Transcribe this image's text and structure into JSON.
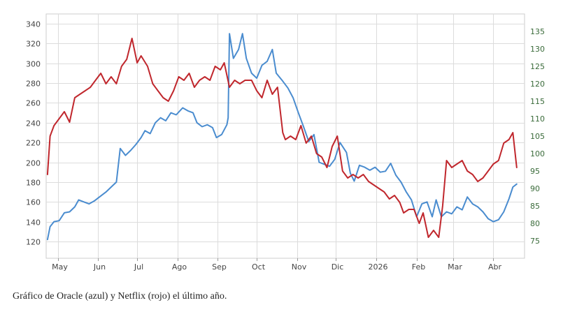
{
  "caption": "Gráfico de Oracle (azul) y Netflix (rojo) el último año.",
  "chart_data": {
    "type": "line",
    "grid": true,
    "legend": "none",
    "x_ticks": [
      "May",
      "Jun",
      "Jul",
      "Ago",
      "Sep",
      "Oct",
      "Nov",
      "Dic",
      "2026",
      "Feb",
      "Mar",
      "Abr"
    ],
    "x_range": [
      "2025-04-22",
      "2026-04-25"
    ],
    "y_left": {
      "min": 120,
      "max": 340,
      "ticks": [
        120,
        140,
        160,
        180,
        200,
        220,
        240,
        260,
        280,
        300,
        320,
        340
      ]
    },
    "y_right": {
      "min": 75,
      "max": 135,
      "ticks": [
        75,
        80,
        85,
        90,
        95,
        100,
        105,
        110,
        115,
        120,
        125,
        130,
        135
      ]
    },
    "series": [
      {
        "axis": "left",
        "color": "#4a8ccf",
        "points": [
          [
            "2025-04-23",
            122
          ],
          [
            "2025-04-25",
            135
          ],
          [
            "2025-04-28",
            140
          ],
          [
            "2025-05-02",
            141
          ],
          [
            "2025-05-06",
            149
          ],
          [
            "2025-05-10",
            150
          ],
          [
            "2025-05-14",
            155
          ],
          [
            "2025-05-17",
            162
          ],
          [
            "2025-05-21",
            160
          ],
          [
            "2025-05-25",
            158
          ],
          [
            "2025-05-29",
            161
          ],
          [
            "2025-06-02",
            165
          ],
          [
            "2025-06-07",
            170
          ],
          [
            "2025-06-11",
            175
          ],
          [
            "2025-06-15",
            180
          ],
          [
            "2025-06-18",
            214
          ],
          [
            "2025-06-22",
            207
          ],
          [
            "2025-06-26",
            212
          ],
          [
            "2025-06-30",
            218
          ],
          [
            "2025-07-04",
            225
          ],
          [
            "2025-07-07",
            232
          ],
          [
            "2025-07-11",
            229
          ],
          [
            "2025-07-15",
            240
          ],
          [
            "2025-07-19",
            245
          ],
          [
            "2025-07-23",
            242
          ],
          [
            "2025-07-27",
            250
          ],
          [
            "2025-07-31",
            248
          ],
          [
            "2025-08-05",
            255
          ],
          [
            "2025-08-09",
            252
          ],
          [
            "2025-08-13",
            250
          ],
          [
            "2025-08-16",
            240
          ],
          [
            "2025-08-20",
            236
          ],
          [
            "2025-08-24",
            238
          ],
          [
            "2025-08-28",
            235
          ],
          [
            "2025-08-31",
            225
          ],
          [
            "2025-09-04",
            228
          ],
          [
            "2025-09-08",
            238
          ],
          [
            "2025-09-09",
            245
          ],
          [
            "2025-09-10",
            330
          ],
          [
            "2025-09-13",
            305
          ],
          [
            "2025-09-17",
            314
          ],
          [
            "2025-09-20",
            330
          ],
          [
            "2025-09-23",
            305
          ],
          [
            "2025-09-27",
            290
          ],
          [
            "2025-10-01",
            285
          ],
          [
            "2025-10-05",
            298
          ],
          [
            "2025-10-09",
            302
          ],
          [
            "2025-10-13",
            314
          ],
          [
            "2025-10-16",
            290
          ],
          [
            "2025-10-21",
            282
          ],
          [
            "2025-10-25",
            275
          ],
          [
            "2025-10-29",
            265
          ],
          [
            "2025-11-02",
            250
          ],
          [
            "2025-11-06",
            236
          ],
          [
            "2025-11-10",
            221
          ],
          [
            "2025-11-14",
            228
          ],
          [
            "2025-11-18",
            200
          ],
          [
            "2025-11-22",
            198
          ],
          [
            "2025-11-26",
            196
          ],
          [
            "2025-11-30",
            203
          ],
          [
            "2025-12-04",
            220
          ],
          [
            "2025-12-09",
            210
          ],
          [
            "2025-12-12",
            189
          ],
          [
            "2025-12-15",
            181
          ],
          [
            "2025-12-19",
            197
          ],
          [
            "2025-12-23",
            195
          ],
          [
            "2025-12-27",
            192
          ],
          [
            "2025-12-31",
            195
          ],
          [
            "2026-01-04",
            190
          ],
          [
            "2026-01-08",
            191
          ],
          [
            "2026-01-12",
            199
          ],
          [
            "2026-01-16",
            187
          ],
          [
            "2026-01-20",
            180
          ],
          [
            "2026-01-24",
            170
          ],
          [
            "2026-01-28",
            162
          ],
          [
            "2026-02-01",
            145
          ],
          [
            "2026-02-05",
            158
          ],
          [
            "2026-02-09",
            160
          ],
          [
            "2026-02-13",
            145
          ],
          [
            "2026-02-16",
            162
          ],
          [
            "2026-02-20",
            145
          ],
          [
            "2026-02-24",
            150
          ],
          [
            "2026-02-28",
            148
          ],
          [
            "2026-03-04",
            155
          ],
          [
            "2026-03-08",
            152
          ],
          [
            "2026-03-12",
            165
          ],
          [
            "2026-03-16",
            158
          ],
          [
            "2026-03-20",
            155
          ],
          [
            "2026-03-24",
            150
          ],
          [
            "2026-03-28",
            143
          ],
          [
            "2026-04-01",
            140
          ],
          [
            "2026-04-05",
            142
          ],
          [
            "2026-04-09",
            150
          ],
          [
            "2026-04-13",
            163
          ],
          [
            "2026-04-16",
            175
          ],
          [
            "2026-04-19",
            178
          ]
        ]
      },
      {
        "axis": "right",
        "color": "#c0272d",
        "points": [
          [
            "2025-04-23",
            94
          ],
          [
            "2025-04-25",
            105
          ],
          [
            "2025-04-28",
            108
          ],
          [
            "2025-05-02",
            110
          ],
          [
            "2025-05-06",
            112
          ],
          [
            "2025-05-10",
            109
          ],
          [
            "2025-05-14",
            116
          ],
          [
            "2025-05-18",
            117
          ],
          [
            "2025-05-22",
            118
          ],
          [
            "2025-05-26",
            119
          ],
          [
            "2025-05-30",
            121
          ],
          [
            "2025-06-03",
            123
          ],
          [
            "2025-06-07",
            120
          ],
          [
            "2025-06-11",
            122
          ],
          [
            "2025-06-15",
            120
          ],
          [
            "2025-06-19",
            125
          ],
          [
            "2025-06-23",
            127
          ],
          [
            "2025-06-27",
            133
          ],
          [
            "2025-07-01",
            126
          ],
          [
            "2025-07-04",
            128
          ],
          [
            "2025-07-09",
            125
          ],
          [
            "2025-07-13",
            120
          ],
          [
            "2025-07-17",
            118
          ],
          [
            "2025-07-21",
            116
          ],
          [
            "2025-07-25",
            115
          ],
          [
            "2025-07-29",
            118
          ],
          [
            "2025-08-02",
            122
          ],
          [
            "2025-08-06",
            121
          ],
          [
            "2025-08-10",
            123
          ],
          [
            "2025-08-14",
            119
          ],
          [
            "2025-08-18",
            121
          ],
          [
            "2025-08-22",
            122
          ],
          [
            "2025-08-26",
            121
          ],
          [
            "2025-08-30",
            125
          ],
          [
            "2025-09-03",
            124
          ],
          [
            "2025-09-06",
            126
          ],
          [
            "2025-09-10",
            119
          ],
          [
            "2025-09-14",
            121
          ],
          [
            "2025-09-18",
            120
          ],
          [
            "2025-09-22",
            121
          ],
          [
            "2025-09-27",
            121
          ],
          [
            "2025-10-01",
            118
          ],
          [
            "2025-10-05",
            116
          ],
          [
            "2025-10-09",
            121
          ],
          [
            "2025-10-13",
            117
          ],
          [
            "2025-10-17",
            119
          ],
          [
            "2025-10-21",
            106
          ],
          [
            "2025-10-23",
            104
          ],
          [
            "2025-10-27",
            105
          ],
          [
            "2025-10-31",
            104
          ],
          [
            "2025-11-04",
            108
          ],
          [
            "2025-11-08",
            103
          ],
          [
            "2025-11-12",
            105
          ],
          [
            "2025-11-16",
            100
          ],
          [
            "2025-11-20",
            99
          ],
          [
            "2025-11-24",
            96
          ],
          [
            "2025-11-28",
            102
          ],
          [
            "2025-12-02",
            105
          ],
          [
            "2025-12-06",
            95
          ],
          [
            "2025-12-10",
            93
          ],
          [
            "2025-12-14",
            94
          ],
          [
            "2025-12-18",
            93
          ],
          [
            "2025-12-22",
            94
          ],
          [
            "2025-12-26",
            92
          ],
          [
            "2025-12-30",
            91
          ],
          [
            "2026-01-03",
            90
          ],
          [
            "2026-01-07",
            89
          ],
          [
            "2026-01-11",
            87
          ],
          [
            "2026-01-15",
            88
          ],
          [
            "2026-01-19",
            86
          ],
          [
            "2026-01-22",
            83
          ],
          [
            "2026-01-26",
            84
          ],
          [
            "2026-01-30",
            84
          ],
          [
            "2026-02-03",
            80
          ],
          [
            "2026-02-06",
            83
          ],
          [
            "2026-02-10",
            76
          ],
          [
            "2026-02-14",
            78
          ],
          [
            "2026-02-18",
            76
          ],
          [
            "2026-02-21",
            85
          ],
          [
            "2026-02-24",
            98
          ],
          [
            "2026-02-28",
            96
          ],
          [
            "2026-03-04",
            97
          ],
          [
            "2026-03-08",
            98
          ],
          [
            "2026-03-12",
            95
          ],
          [
            "2026-03-16",
            94
          ],
          [
            "2026-03-20",
            92
          ],
          [
            "2026-03-24",
            93
          ],
          [
            "2026-03-28",
            95
          ],
          [
            "2026-04-01",
            97
          ],
          [
            "2026-04-05",
            98
          ],
          [
            "2026-04-09",
            103
          ],
          [
            "2026-04-13",
            104
          ],
          [
            "2026-04-16",
            106
          ],
          [
            "2026-04-19",
            96
          ]
        ]
      }
    ]
  }
}
